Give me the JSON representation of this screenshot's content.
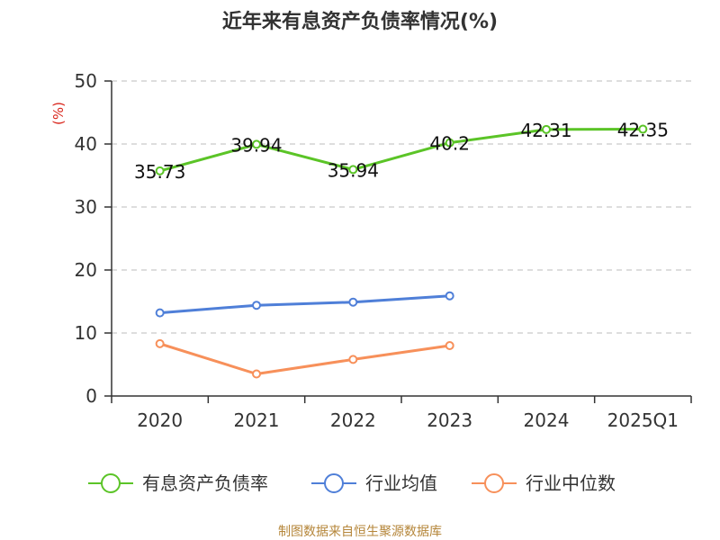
{
  "chart_data": {
    "type": "line",
    "title": "近年来有息资产负债率情况(%)",
    "ylabel": "(%)",
    "xlabel": "",
    "categories": [
      "2020",
      "2021",
      "2022",
      "2023",
      "2024",
      "2025Q1"
    ],
    "ylim": [
      0,
      50
    ],
    "yticks": [
      0,
      10,
      20,
      30,
      40,
      50
    ],
    "grid": true,
    "legend_position": "bottom",
    "series": [
      {
        "name": "有息资产负债率",
        "color": "#5bc427",
        "values": [
          35.73,
          39.94,
          35.94,
          40.2,
          42.31,
          42.35
        ],
        "labels": [
          "35.73",
          "39.94",
          "35.94",
          "40.2",
          "42.31",
          "42.35"
        ]
      },
      {
        "name": "行业均值",
        "color": "#4f7fd8",
        "values": [
          13.2,
          14.4,
          14.9,
          15.9,
          null,
          null
        ]
      },
      {
        "name": "行业中位数",
        "color": "#f7905a",
        "values": [
          8.3,
          3.5,
          5.8,
          8.0,
          null,
          null
        ]
      }
    ]
  },
  "source": "制图数据来自恒生聚源数据库"
}
